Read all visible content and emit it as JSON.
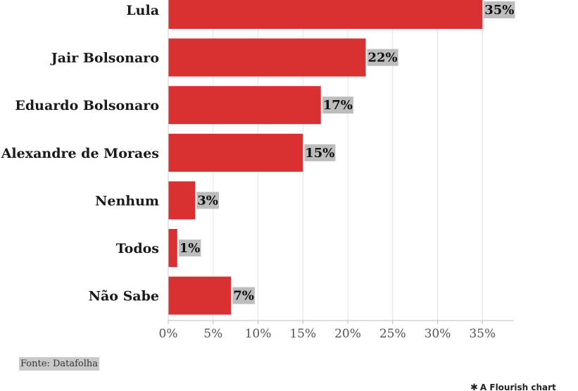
{
  "chart_data": {
    "type": "bar",
    "orientation": "horizontal",
    "categories": [
      "Lula",
      "Jair Bolsonaro",
      "Eduardo Bolsonaro",
      "Alexandre de Moraes",
      "Nenhum",
      "Todos",
      "Não Sabe"
    ],
    "values": [
      35,
      22,
      17,
      15,
      3,
      1,
      7
    ],
    "value_labels": [
      "35%",
      "22%",
      "17%",
      "15%",
      "3%",
      "1%",
      "7%"
    ],
    "x_ticks": [
      "0%",
      "5%",
      "10%",
      "15%",
      "20%",
      "25%",
      "30%",
      "35%"
    ],
    "tick_values": [
      0,
      5,
      10,
      15,
      20,
      25,
      30,
      35
    ],
    "xlim": [
      0,
      38.5
    ],
    "grid": true,
    "bar_color": "#d93032",
    "label_bg_color": "#bdbdbd"
  },
  "footer": {
    "source": "Fonte: Datafolha",
    "credit": "A Flourish chart"
  },
  "icons": {
    "credit_icon": "asterisk-icon"
  }
}
